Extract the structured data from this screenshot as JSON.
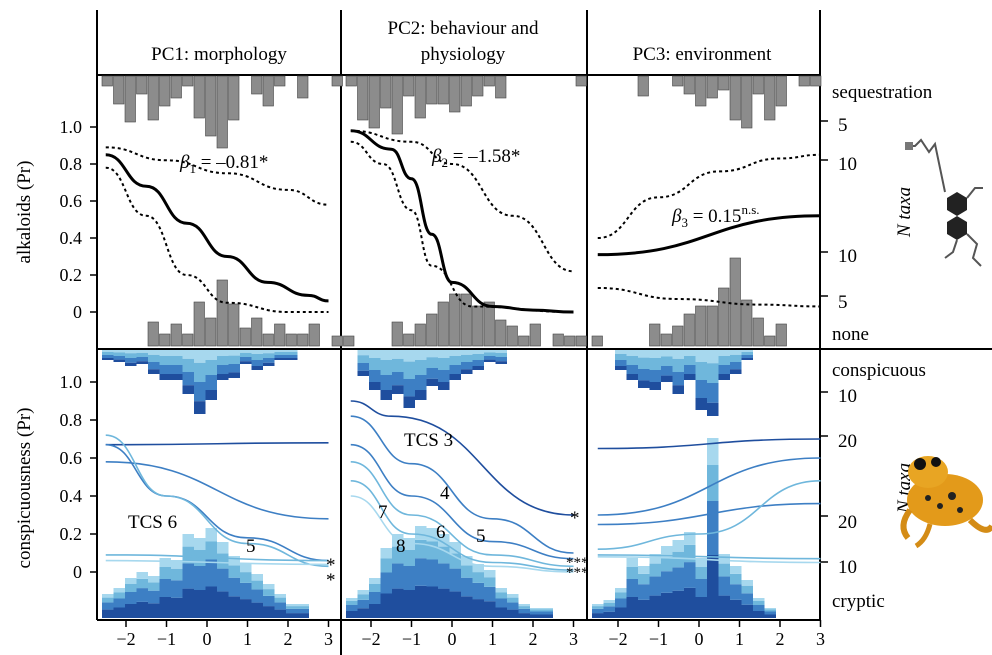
{
  "colors": {
    "bar_gray": "#8c8c8c",
    "blue_dark": "#1f4e9e",
    "blue_mid": "#3d7fc4",
    "blue_light": "#6fb7dc",
    "blue_pale": "#a7d8ee",
    "fit": "#000000"
  },
  "panels": [
    {
      "title_line1": "PC1: morphology",
      "title_line2": ""
    },
    {
      "title_line1": "PC2: behaviour and",
      "title_line2": "physiology"
    },
    {
      "title_line1": "PC3: environment",
      "title_line2": ""
    }
  ],
  "top_row": {
    "ylabel": "alkaloids (Pr)",
    "right_top": "sequestration",
    "right_bottom": "none",
    "ntaxa_label": "N taxa",
    "yticks": [
      "1.0",
      "0.8",
      "0.6",
      "0.4",
      "0.2",
      "0"
    ],
    "right_ticks_upper": [
      "5",
      "10"
    ],
    "right_ticks_lower": [
      "10",
      "5"
    ],
    "annotations": [
      {
        "panel": 0,
        "beta_sym": "β",
        "sub": "1",
        "rest": " = –0.81*"
      },
      {
        "panel": 1,
        "beta_sym": "β",
        "sub": "2",
        "rest": " = –1.58*"
      },
      {
        "panel": 2,
        "beta_sym": "β",
        "sub": "3",
        "rest": " = 0.15",
        "sup": "n.s."
      }
    ]
  },
  "bottom_row": {
    "ylabel": "conspicuousness (Pr)",
    "right_top": "conspicuous",
    "right_bottom": "cryptic",
    "ntaxa_label": "N taxa",
    "yticks": [
      "1.0",
      "0.8",
      "0.6",
      "0.4",
      "0.2",
      "0"
    ],
    "right_ticks_upper": [
      "10",
      "20"
    ],
    "right_ticks_lower": [
      "20",
      "10"
    ],
    "labels_p1": {
      "tcs6": "TCS 6",
      "five": "5",
      "stars": [
        "*",
        "*"
      ]
    },
    "labels_p2": {
      "tcs3": "TCS 3",
      "four": "4",
      "seven": "7",
      "six": "6",
      "five": "5",
      "eight": "8",
      "stars": [
        "*",
        "***",
        "***"
      ]
    }
  },
  "xticks": [
    "−2",
    "−1",
    "0",
    "1",
    "2",
    "3"
  ],
  "chart_data": [
    {
      "type": "line",
      "panel": "PC1: morphology",
      "row": "alkaloids",
      "ylim": [
        -0.2,
        1.25
      ],
      "xlim": [
        -2.7,
        3.2
      ],
      "series": [
        {
          "x": [
            -2.5,
            -1.5,
            -0.5,
            0.5,
            1.5,
            2.5,
            3.0
          ],
          "y": [
            0.85,
            0.68,
            0.48,
            0.3,
            0.16,
            0.09,
            0.06
          ]
        }
      ]
    },
    {
      "type": "line",
      "panel": "PC2: behaviour and physiology",
      "row": "alkaloids",
      "ylim": [
        -0.2,
        1.25
      ],
      "xlim": [
        -2.7,
        3.2
      ],
      "series": [
        {
          "x": [
            -2.5,
            -1.5,
            -1.0,
            -0.5,
            0.0,
            1.0,
            2.0,
            3.0
          ],
          "y": [
            0.98,
            0.88,
            0.72,
            0.42,
            0.16,
            0.03,
            0.01,
            0.0
          ]
        }
      ]
    },
    {
      "type": "line",
      "panel": "PC3: environment",
      "row": "alkaloids",
      "ylim": [
        -0.2,
        1.25
      ],
      "xlim": [
        -2.7,
        3.2
      ],
      "series": [
        {
          "x": [
            -2.5,
            3.0
          ],
          "y": [
            0.31,
            0.52
          ]
        }
      ]
    },
    {
      "type": "line",
      "panel": "PC1: morphology",
      "row": "conspicuousness",
      "ylim": [
        -0.2,
        1.25
      ],
      "xlim": [
        -2.7,
        3.2
      ],
      "series": [
        {
          "x": [
            -2.5,
            3.0
          ],
          "y": [
            0.67,
            0.68
          ]
        },
        {
          "x": [
            -2.5,
            3.0
          ],
          "y": [
            0.58,
            0.28
          ]
        },
        {
          "x": [
            -2.5,
            -1.0,
            1.0,
            3.0
          ],
          "y": [
            0.67,
            0.4,
            0.18,
            0.06
          ]
        },
        {
          "x": [
            -2.5,
            -1.0,
            1.0,
            3.0
          ],
          "y": [
            0.72,
            0.4,
            0.15,
            0.03
          ]
        },
        {
          "x": [
            -2.5,
            3.0
          ],
          "y": [
            0.09,
            0.06
          ]
        },
        {
          "x": [
            -2.5,
            3.0
          ],
          "y": [
            0.06,
            0.04
          ]
        }
      ]
    },
    {
      "type": "line",
      "panel": "PC2: behaviour and physiology",
      "row": "conspicuousness",
      "ylim": [
        -0.2,
        1.25
      ],
      "xlim": [
        -2.7,
        3.2
      ],
      "series": [
        {
          "x": [
            -2.5,
            -1.5,
            3.0
          ],
          "y": [
            0.9,
            0.82,
            0.3
          ]
        },
        {
          "x": [
            -2.5,
            -1.0,
            1.0,
            3.0
          ],
          "y": [
            0.82,
            0.57,
            0.28,
            0.1
          ]
        },
        {
          "x": [
            -2.5,
            -1.0,
            1.0,
            3.0
          ],
          "y": [
            0.67,
            0.4,
            0.16,
            0.07
          ]
        },
        {
          "x": [
            -2.5,
            -1.0,
            1.0,
            3.0
          ],
          "y": [
            0.58,
            0.3,
            0.09,
            0.03
          ]
        },
        {
          "x": [
            -2.5,
            -1.0,
            1.0,
            3.0
          ],
          "y": [
            0.48,
            0.2,
            0.05,
            0.01
          ]
        },
        {
          "x": [
            -2.5,
            -1.0,
            1.0,
            3.0
          ],
          "y": [
            0.4,
            0.15,
            0.03,
            0.0
          ]
        }
      ]
    },
    {
      "type": "line",
      "panel": "PC3: environment",
      "row": "conspicuousness",
      "ylim": [
        -0.2,
        1.25
      ],
      "xlim": [
        -2.7,
        3.2
      ],
      "series": [
        {
          "x": [
            -2.5,
            3.0
          ],
          "y": [
            0.65,
            0.7
          ]
        },
        {
          "x": [
            -2.5,
            3.0
          ],
          "y": [
            0.3,
            0.6
          ]
        },
        {
          "x": [
            -2.5,
            3.0
          ],
          "y": [
            0.25,
            0.36
          ]
        },
        {
          "x": [
            -2.5,
            0.0,
            3.0
          ],
          "y": [
            0.12,
            0.2,
            0.48
          ]
        },
        {
          "x": [
            -2.5,
            3.0
          ],
          "y": [
            0.09,
            0.07
          ]
        },
        {
          "x": [
            -2.5,
            3.0
          ],
          "y": [
            0.08,
            0.05
          ]
        }
      ]
    }
  ]
}
